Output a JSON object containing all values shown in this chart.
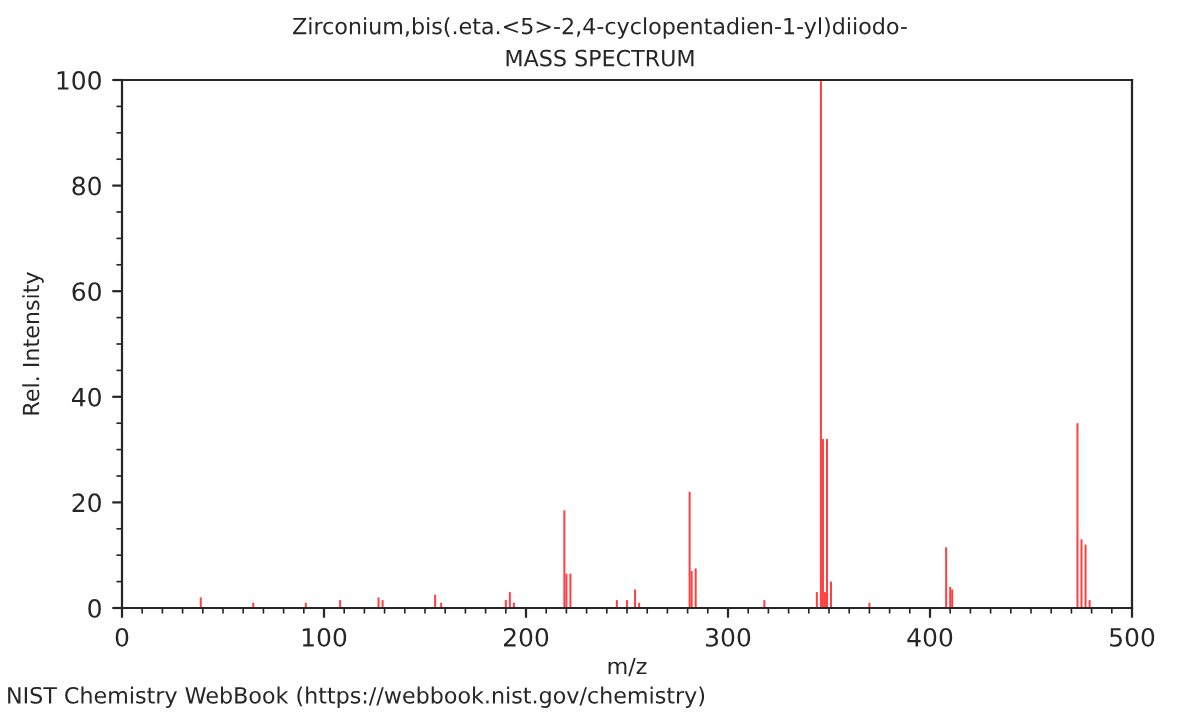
{
  "chart_data": {
    "type": "bar",
    "title": "Zirconium,bis(.eta.<5>-2,4-cyclopentadien-1-yl)diiodo-",
    "subtitle": "MASS SPECTRUM",
    "xlabel": "m/z",
    "ylabel": "Rel. Intensity",
    "x": [
      39,
      65,
      91,
      108,
      127,
      129,
      155,
      158,
      190,
      192,
      194,
      219,
      220,
      222,
      245,
      250,
      254,
      256,
      281,
      282,
      284,
      318,
      344,
      346,
      347,
      348,
      349,
      351,
      370,
      408,
      410,
      411,
      473,
      475,
      477,
      479
    ],
    "values": [
      2,
      1,
      1,
      1.5,
      2,
      1.5,
      2.5,
      1,
      1.5,
      3,
      1,
      18.5,
      6.5,
      6.5,
      1.5,
      1.5,
      3.5,
      1,
      22,
      7,
      7.5,
      1.5,
      3,
      100,
      32,
      3,
      32,
      5,
      1,
      11.5,
      4,
      3.5,
      35,
      13,
      12,
      1.5
    ],
    "color": "#ff4040",
    "xlim": [
      0,
      500
    ],
    "xticks": [
      0,
      100,
      200,
      300,
      400,
      500
    ],
    "ylim": [
      0,
      100
    ],
    "yticks": [
      0,
      20,
      40,
      60,
      80,
      100
    ],
    "annotations": [
      "NIST Chemistry WebBook (https://webbook.nist.gov/chemistry)"
    ]
  }
}
